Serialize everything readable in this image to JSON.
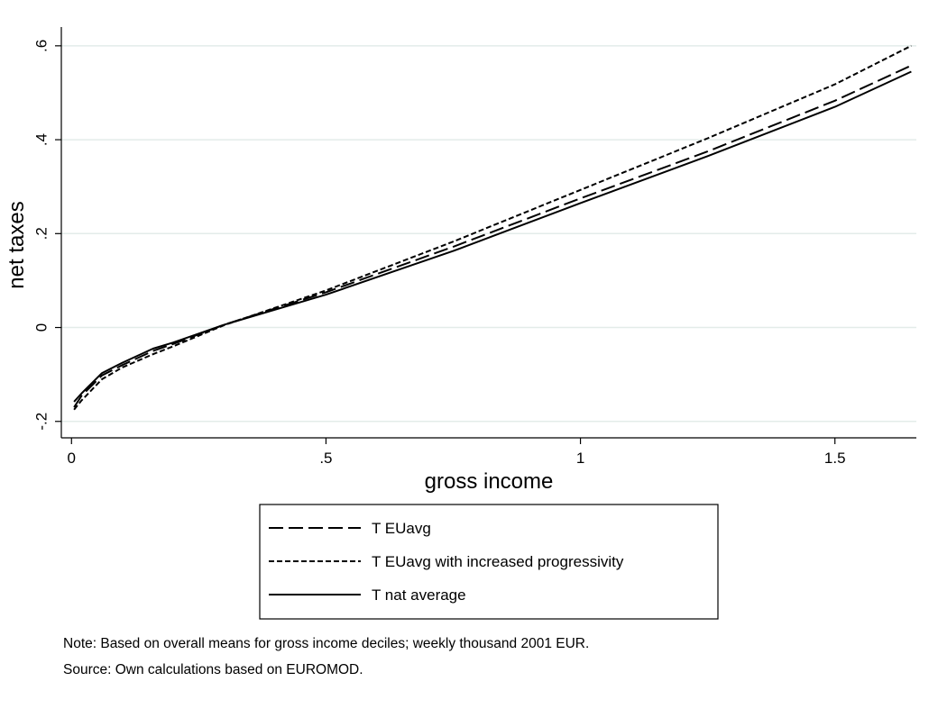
{
  "chart_data": {
    "type": "line",
    "title": "",
    "xlabel": "gross income",
    "ylabel": "net taxes",
    "xlim": [
      -0.02,
      1.66
    ],
    "ylim": [
      -0.235,
      0.64
    ],
    "xticks": [
      0,
      0.5,
      1,
      1.5
    ],
    "xtick_labels": [
      "0",
      ".5",
      "1",
      "1.5"
    ],
    "yticks": [
      -0.2,
      0,
      0.2,
      0.4,
      0.6
    ],
    "ytick_labels": [
      "-.2",
      "0",
      ".2",
      ".4",
      ".6"
    ],
    "grid": true,
    "legend_position": "bottom",
    "series": [
      {
        "name": "T EUavg",
        "style": "long-dash",
        "x": [
          0.005,
          0.02,
          0.06,
          0.1,
          0.16,
          0.2,
          0.3,
          0.5,
          0.75,
          1.0,
          1.25,
          1.5,
          1.65
        ],
        "y": [
          -0.17,
          -0.145,
          -0.102,
          -0.08,
          -0.05,
          -0.035,
          0.006,
          0.075,
          0.172,
          0.275,
          0.375,
          0.483,
          0.558
        ]
      },
      {
        "name": "T EUavg with increased progressivity",
        "style": "short-dash",
        "x": [
          0.005,
          0.02,
          0.06,
          0.1,
          0.16,
          0.2,
          0.3,
          0.5,
          0.75,
          1.0,
          1.25,
          1.5,
          1.65
        ],
        "y": [
          -0.175,
          -0.155,
          -0.11,
          -0.085,
          -0.057,
          -0.04,
          0.005,
          0.079,
          0.183,
          0.293,
          0.403,
          0.518,
          0.6
        ]
      },
      {
        "name": "T nat average",
        "style": "solid",
        "x": [
          0.005,
          0.02,
          0.06,
          0.1,
          0.16,
          0.2,
          0.3,
          0.5,
          0.75,
          1.0,
          1.25,
          1.5,
          1.65
        ],
        "y": [
          -0.158,
          -0.14,
          -0.097,
          -0.075,
          -0.045,
          -0.032,
          0.006,
          0.07,
          0.163,
          0.265,
          0.365,
          0.47,
          0.545
        ]
      }
    ],
    "colors": {
      "line": "#000000",
      "grid": "#e3ece9",
      "axis": "#000000",
      "background": "#ffffff"
    }
  },
  "notes": {
    "line1": "Note: Based on overall means for gross income deciles; weekly thousand 2001 EUR.",
    "line2": "Source: Own calculations based on EUROMOD."
  }
}
